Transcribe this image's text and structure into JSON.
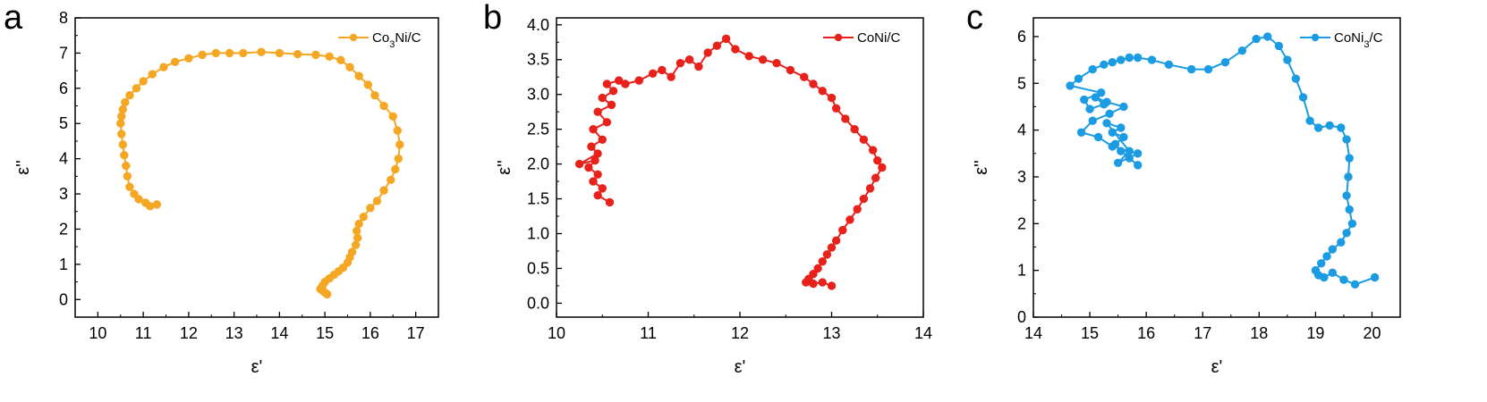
{
  "chart_data": [
    {
      "type": "line",
      "panel": "a",
      "xlabel": "ε'",
      "ylabel": "ε''",
      "xlim": [
        9.5,
        17.5
      ],
      "ylim": [
        -0.5,
        8
      ],
      "xticks": [
        "10",
        "11",
        "12",
        "13",
        "14",
        "15",
        "16",
        "17"
      ],
      "yticks": [
        "0",
        "1",
        "2",
        "3",
        "4",
        "5",
        "6",
        "7",
        "8"
      ],
      "grid": false,
      "legend_position": "top-right",
      "series": [
        {
          "name": "Co3Ni/C",
          "color": "#F5A623",
          "markers": true,
          "x": [
            11.3,
            11.15,
            11.05,
            10.9,
            10.8,
            10.7,
            10.65,
            10.62,
            10.58,
            10.55,
            10.52,
            10.5,
            10.52,
            10.55,
            10.6,
            10.7,
            10.85,
            11.0,
            11.2,
            11.45,
            11.7,
            12.0,
            12.3,
            12.6,
            12.9,
            13.2,
            13.6,
            14.0,
            14.4,
            14.8,
            15.1,
            15.35,
            15.55,
            15.75,
            15.95,
            16.1,
            16.3,
            16.5,
            16.6,
            16.65,
            16.62,
            16.55,
            16.45,
            16.3,
            16.15,
            16.0,
            15.85,
            15.75,
            15.7,
            15.72,
            15.68,
            15.6,
            15.55,
            15.5,
            15.4,
            15.3,
            15.2,
            15.1,
            15.0,
            14.95,
            14.9,
            14.95,
            15.0,
            15.05
          ],
          "y": [
            2.7,
            2.65,
            2.75,
            2.85,
            3.0,
            3.2,
            3.5,
            3.8,
            4.1,
            4.4,
            4.7,
            5.0,
            5.2,
            5.4,
            5.6,
            5.8,
            6.0,
            6.2,
            6.4,
            6.6,
            6.75,
            6.85,
            6.95,
            7.0,
            7.0,
            7.0,
            7.03,
            7.0,
            6.97,
            6.95,
            6.9,
            6.8,
            6.6,
            6.35,
            6.1,
            5.8,
            5.5,
            5.2,
            4.8,
            4.4,
            4.0,
            3.7,
            3.4,
            3.1,
            2.8,
            2.6,
            2.35,
            2.15,
            1.95,
            1.75,
            1.55,
            1.35,
            1.2,
            1.05,
            0.9,
            0.8,
            0.7,
            0.6,
            0.5,
            0.4,
            0.3,
            0.25,
            0.2,
            0.15
          ]
        }
      ]
    },
    {
      "type": "line",
      "panel": "b",
      "xlabel": "ε'",
      "ylabel": "ε''",
      "xlim": [
        10,
        14
      ],
      "ylim": [
        -0.2,
        4.1
      ],
      "xticks": [
        "10",
        "11",
        "12",
        "13",
        "14"
      ],
      "yticks": [
        "0.0",
        "0.5",
        "1.0",
        "1.5",
        "2.0",
        "2.5",
        "3.0",
        "3.5",
        "4.0"
      ],
      "grid": false,
      "legend_position": "top-right",
      "series": [
        {
          "name": "CoNi/C",
          "color": "#E8211B",
          "markers": true,
          "x": [
            10.58,
            10.45,
            10.5,
            10.4,
            10.45,
            10.35,
            10.42,
            10.25,
            10.45,
            10.38,
            10.5,
            10.4,
            10.55,
            10.45,
            10.6,
            10.5,
            10.62,
            10.55,
            10.68,
            10.75,
            10.9,
            11.05,
            11.15,
            11.25,
            11.35,
            11.45,
            11.55,
            11.65,
            11.75,
            11.85,
            11.95,
            12.1,
            12.25,
            12.4,
            12.55,
            12.7,
            12.8,
            12.9,
            13.0,
            13.05,
            13.15,
            13.25,
            13.35,
            13.45,
            13.5,
            13.55,
            13.48,
            13.42,
            13.35,
            13.28,
            13.2,
            13.12,
            13.05,
            13.0,
            12.95,
            12.9,
            12.85,
            12.8,
            12.75,
            12.72,
            12.8,
            12.9,
            13.0
          ],
          "y": [
            1.45,
            1.55,
            1.65,
            1.75,
            1.85,
            1.95,
            2.05,
            2.0,
            2.15,
            2.25,
            2.35,
            2.5,
            2.6,
            2.75,
            2.85,
            2.95,
            3.05,
            3.15,
            3.2,
            3.15,
            3.2,
            3.3,
            3.35,
            3.25,
            3.45,
            3.5,
            3.4,
            3.6,
            3.7,
            3.8,
            3.65,
            3.55,
            3.5,
            3.45,
            3.35,
            3.25,
            3.15,
            3.05,
            2.95,
            2.8,
            2.65,
            2.5,
            2.35,
            2.2,
            2.05,
            1.95,
            1.8,
            1.65,
            1.5,
            1.35,
            1.2,
            1.05,
            0.9,
            0.8,
            0.7,
            0.6,
            0.5,
            0.42,
            0.35,
            0.3,
            0.28,
            0.3,
            0.25
          ]
        }
      ]
    },
    {
      "type": "line",
      "panel": "c",
      "xlabel": "ε'",
      "ylabel": "ε''",
      "xlim": [
        14,
        20.5
      ],
      "ylim": [
        0,
        6.4
      ],
      "xticks": [
        "14",
        "15",
        "16",
        "17",
        "18",
        "19",
        "20"
      ],
      "yticks": [
        "0",
        "1",
        "2",
        "3",
        "4",
        "5",
        "6"
      ],
      "grid": false,
      "legend_position": "top-right",
      "series": [
        {
          "name": "CoNi3/C",
          "color": "#1A9BE2",
          "markers": true,
          "x": [
            15.85,
            15.7,
            15.55,
            15.45,
            15.6,
            15.4,
            15.55,
            15.3,
            15.7,
            15.5,
            15.85,
            15.4,
            15.15,
            14.85,
            15.05,
            15.35,
            15.6,
            15.3,
            15.1,
            15.25,
            15.0,
            14.9,
            15.2,
            14.65,
            14.8,
            15.05,
            15.25,
            15.4,
            15.55,
            15.7,
            15.85,
            16.1,
            16.4,
            16.8,
            17.1,
            17.4,
            17.7,
            17.95,
            18.15,
            18.35,
            18.5,
            18.65,
            18.78,
            18.9,
            19.05,
            19.25,
            19.45,
            19.55,
            19.6,
            19.58,
            19.55,
            19.6,
            19.65,
            19.55,
            19.45,
            19.3,
            19.2,
            19.1,
            19.0,
            19.05,
            19.15,
            19.3,
            19.5,
            19.7,
            20.05
          ],
          "y": [
            3.25,
            3.4,
            3.55,
            3.7,
            3.85,
            3.95,
            4.05,
            4.15,
            3.55,
            3.3,
            3.5,
            3.65,
            3.85,
            3.95,
            4.2,
            4.35,
            4.5,
            4.6,
            4.7,
            4.55,
            4.45,
            4.65,
            4.8,
            4.95,
            5.1,
            5.3,
            5.4,
            5.45,
            5.5,
            5.55,
            5.55,
            5.5,
            5.4,
            5.3,
            5.3,
            5.45,
            5.7,
            5.95,
            6.0,
            5.8,
            5.5,
            5.1,
            4.7,
            4.2,
            4.05,
            4.1,
            4.05,
            3.8,
            3.4,
            3.0,
            2.6,
            2.3,
            2.0,
            1.8,
            1.6,
            1.45,
            1.3,
            1.15,
            1.0,
            0.9,
            0.85,
            0.95,
            0.8,
            0.7,
            0.85
          ]
        }
      ]
    }
  ]
}
